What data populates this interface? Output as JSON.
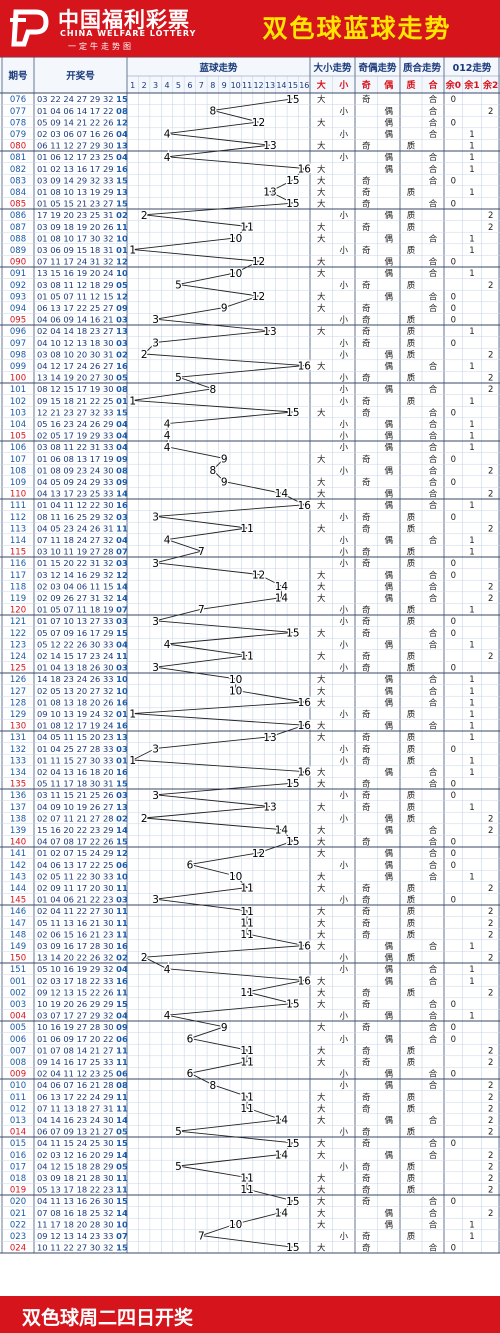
{
  "header": {
    "logo_cn": "中国福利彩票",
    "logo_en": "CHINA WELFARE LOTTERY",
    "logo_sub": "一定牛走势图",
    "title": "双色球蓝球走势"
  },
  "footer": {
    "text": "双色球周二四日开奖"
  },
  "colors": {
    "brand_red": "#d6141c",
    "title_yellow": "#ffe600",
    "period_blue": "#1a5aa8",
    "period_last_red": "#d6141c",
    "grid": "#c9d6e8",
    "section_rule": "#3a4a6a"
  },
  "columns": {
    "period": "期号",
    "numbers": "开奖号",
    "blue_trend": "蓝球走势",
    "size": "大小走势",
    "size_big": "大",
    "size_small": "小",
    "parity": "奇偶走势",
    "parity_odd": "奇",
    "parity_even": "偶",
    "prime": "质合走势",
    "prime_prime": "质",
    "prime_composite": "合",
    "mod3": "012走势",
    "mod3_0": "余0",
    "mod3_1": "余1",
    "mod3_2": "余2"
  },
  "chart_data": {
    "type": "table",
    "title": "双色球蓝球走势",
    "blue_range": [
      1,
      16
    ],
    "blue_axis_ticks": [
      "1",
      "2",
      "3",
      "4",
      "5",
      "6",
      "7",
      "8",
      "9",
      "10",
      "11",
      "12",
      "13",
      "14",
      "15",
      "16"
    ],
    "rows": [
      [
        "076",
        "03 22 24 27 29 32",
        15
      ],
      [
        "077",
        "01 04 06 14 17 22",
        8
      ],
      [
        "078",
        "05 09 14 21 22 26",
        12
      ],
      [
        "079",
        "02 03 06 07 16 26",
        4
      ],
      [
        "080",
        "06 11 12 27 29 30",
        13
      ],
      [
        "081",
        "01 06 12 17 23 25",
        4
      ],
      [
        "082",
        "01 02 13 16 17 29",
        16
      ],
      [
        "083",
        "03 09 14 29 32 33",
        15
      ],
      [
        "084",
        "01 08 10 13 19 29",
        13
      ],
      [
        "085",
        "01 05 15 21 23 27",
        15
      ],
      [
        "086",
        "17 19 20 23 25 31",
        2
      ],
      [
        "087",
        "03 09 18 19 20 26",
        11
      ],
      [
        "088",
        "01 08 10 17 30 32",
        10
      ],
      [
        "089",
        "03 06 09 15 18 31",
        1
      ],
      [
        "090",
        "07 11 17 24 31 32",
        12
      ],
      [
        "091",
        "13 15 16 19 20 24",
        10
      ],
      [
        "092",
        "03 08 11 12 18 29",
        5
      ],
      [
        "093",
        "01 05 07 11 12 15",
        12
      ],
      [
        "094",
        "06 13 17 22 25 27",
        9
      ],
      [
        "095",
        "04 06 09 14 16 21",
        3
      ],
      [
        "096",
        "02 04 14 18 23 27",
        13
      ],
      [
        "097",
        "04 10 12 13 18 30",
        3
      ],
      [
        "098",
        "03 08 10 20 30 31",
        2
      ],
      [
        "099",
        "04 12 17 24 26 27",
        16
      ],
      [
        "100",
        "13 14 19 20 27 30",
        5
      ],
      [
        "101",
        "08 12 15 17 19 30",
        8
      ],
      [
        "102",
        "09 15 18 21 22 25",
        1
      ],
      [
        "103",
        "12 21 23 27 32 33",
        15
      ],
      [
        "104",
        "05 16 23 24 26 29",
        4
      ],
      [
        "105",
        "02 05 17 19 29 33",
        4
      ],
      [
        "106",
        "03 08 11 22 31 33",
        4
      ],
      [
        "107",
        "01 06 08 13 17 19",
        9
      ],
      [
        "108",
        "01 08 09 23 24 30",
        8
      ],
      [
        "109",
        "04 05 09 24 29 33",
        9
      ],
      [
        "110",
        "04 13 17 23 25 33",
        14
      ],
      [
        "111",
        "01 04 11 12 22 30",
        16
      ],
      [
        "112",
        "08 11 16 25 29 32",
        3
      ],
      [
        "113",
        "04 05 23 24 26 31",
        11
      ],
      [
        "114",
        "07 11 18 24 27 32",
        4
      ],
      [
        "115",
        "03 10 11 19 27 28",
        7
      ],
      [
        "116",
        "01 15 20 22 31 32",
        3
      ],
      [
        "117",
        "03 12 14 16 29 32",
        12
      ],
      [
        "118",
        "02 03 04 06 11 15",
        14
      ],
      [
        "119",
        "02 09 26 27 31 32",
        14
      ],
      [
        "120",
        "01 05 07 11 18 19",
        7
      ],
      [
        "121",
        "01 07 10 13 27 33",
        3
      ],
      [
        "122",
        "05 07 09 16 17 29",
        15
      ],
      [
        "123",
        "05 12 22 26 30 33",
        4
      ],
      [
        "124",
        "02 14 15 17 23 24",
        11
      ],
      [
        "125",
        "01 04 13 18 26 30",
        3
      ],
      [
        "126",
        "14 18 23 24 26 33",
        10
      ],
      [
        "127",
        "02 05 13 20 27 32",
        10
      ],
      [
        "128",
        "01 08 13 18 20 26",
        16
      ],
      [
        "129",
        "09 10 13 19 24 32",
        1
      ],
      [
        "130",
        "01 08 12 17 19 24",
        16
      ],
      [
        "131",
        "04 05 11 15 20 23",
        13
      ],
      [
        "132",
        "01 04 25 27 28 33",
        3
      ],
      [
        "133",
        "01 11 15 27 30 33",
        1
      ],
      [
        "134",
        "02 04 13 16 18 20",
        16
      ],
      [
        "135",
        "05 11 17 18 30 31",
        15
      ],
      [
        "136",
        "03 11 15 21 25 26",
        3
      ],
      [
        "137",
        "04 09 10 19 26 27",
        13
      ],
      [
        "138",
        "02 07 11 21 27 28",
        2
      ],
      [
        "139",
        "15 16 20 22 23 29",
        14
      ],
      [
        "140",
        "04 07 08 17 22 26",
        15
      ],
      [
        "141",
        "01 02 07 15 24 29",
        12
      ],
      [
        "142",
        "04 06 13 17 22 25",
        6
      ],
      [
        "143",
        "02 05 11 22 30 33",
        10
      ],
      [
        "144",
        "02 09 11 17 20 30",
        11
      ],
      [
        "145",
        "01 04 06 21 22 23",
        3
      ],
      [
        "146",
        "02 04 11 22 27 30",
        11
      ],
      [
        "147",
        "05 11 13 16 21 30",
        11
      ],
      [
        "148",
        "02 06 15 16 21 23",
        11
      ],
      [
        "149",
        "03 09 16 17 28 30",
        16
      ],
      [
        "150",
        "13 14 20 22 26 32",
        2
      ],
      [
        "151",
        "05 10 16 19 29 32",
        4
      ],
      [
        "001",
        "02 03 17 18 22 33",
        16
      ],
      [
        "002",
        "09 12 13 15 22 26",
        11
      ],
      [
        "003",
        "10 19 20 26 29 29",
        15
      ],
      [
        "004",
        "03 07 17 27 29 32",
        4
      ],
      [
        "005",
        "10 16 19 27 28 30",
        9
      ],
      [
        "006",
        "01 06 09 17 20 22",
        6
      ],
      [
        "007",
        "01 07 08 14 21 27",
        11
      ],
      [
        "008",
        "09 14 16 17 25 33",
        11
      ],
      [
        "009",
        "02 04 11 12 23 25",
        6
      ],
      [
        "010",
        "04 06 07 16 21 28",
        8
      ],
      [
        "011",
        "06 13 17 22 24 29",
        11
      ],
      [
        "012",
        "07 11 13 18 27 31",
        11
      ],
      [
        "013",
        "04 14 16 23 24 30",
        14
      ],
      [
        "014",
        "06 07 09 13 21 27",
        5
      ],
      [
        "015",
        "04 11 15 24 25 30",
        15
      ],
      [
        "016",
        "02 03 12 16 20 29",
        14
      ],
      [
        "017",
        "04 12 15 18 28 29",
        5
      ],
      [
        "018",
        "03 09 18 21 28 30",
        11
      ],
      [
        "019",
        "05 13 17 18 22 23",
        11
      ],
      [
        "020",
        "04 11 13 16 26 30",
        15
      ],
      [
        "021",
        "07 08 16 18 25 32",
        14
      ],
      [
        "022",
        "11 17 18 20 28 30",
        10
      ],
      [
        "023",
        "09 12 13 14 23 33",
        7
      ],
      [
        "024",
        "10 11 22 27 30 32",
        15
      ]
    ]
  }
}
